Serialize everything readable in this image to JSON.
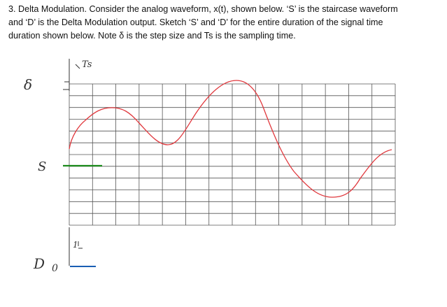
{
  "question": {
    "lines": [
      "3. Delta Modulation. Consider the analog waveform, x(t), shown below. ‘S’ is the staircase waveform",
      "and ‘D’ is the Delta Modulation output. Sketch ‘S’ and ‘D’ for the entire duration of the signal time",
      "duration shown below. Note δ is the step size and Ts is the sampling time."
    ]
  },
  "labels": {
    "delta": "δ",
    "ts": "Ts",
    "s": "S",
    "d": "D",
    "one": "1",
    "zero": "0"
  }
}
